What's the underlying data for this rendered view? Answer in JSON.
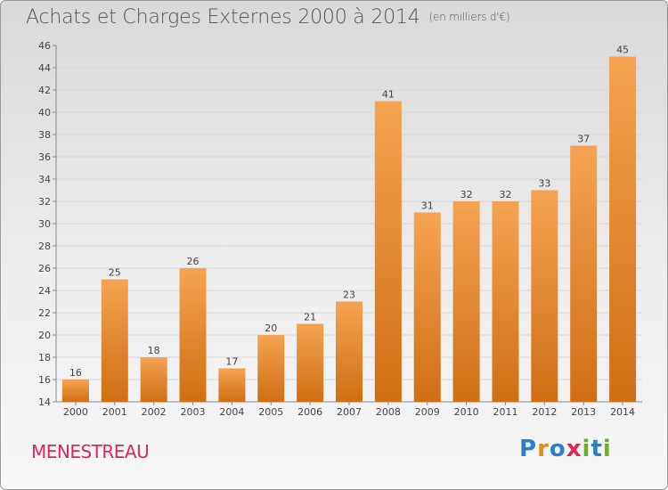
{
  "header": {
    "title": "Achats et Charges Externes 2000 à 2014",
    "unit": "(en milliers d'€)"
  },
  "footer": {
    "city": "MENESTREAU",
    "logo_text": "Proxiti"
  },
  "colors": {
    "bar_top": "#f5a352",
    "bar_bottom": "#cf6f14",
    "city": "#e0245e",
    "logo": [
      "#2a7fc8",
      "#e88a10",
      "#2a7fc8",
      "#e0245e",
      "#6ab023",
      "#2a7fc8",
      "#6ab023"
    ]
  },
  "chart_data": {
    "type": "bar",
    "title": "Achats et Charges Externes 2000 à 2014",
    "subtitle": "(en milliers d'€)",
    "categories": [
      "2000",
      "2001",
      "2002",
      "2003",
      "2004",
      "2005",
      "2006",
      "2007",
      "2008",
      "2009",
      "2010",
      "2011",
      "2012",
      "2013",
      "2014"
    ],
    "values": [
      16,
      25,
      18,
      26,
      17,
      20,
      21,
      23,
      41,
      31,
      32,
      32,
      33,
      37,
      45
    ],
    "ylim": [
      14,
      46
    ],
    "yticks": [
      14,
      16,
      18,
      20,
      22,
      24,
      26,
      28,
      30,
      32,
      34,
      36,
      38,
      40,
      42,
      44,
      46
    ],
    "grid": true,
    "legend": "none"
  }
}
